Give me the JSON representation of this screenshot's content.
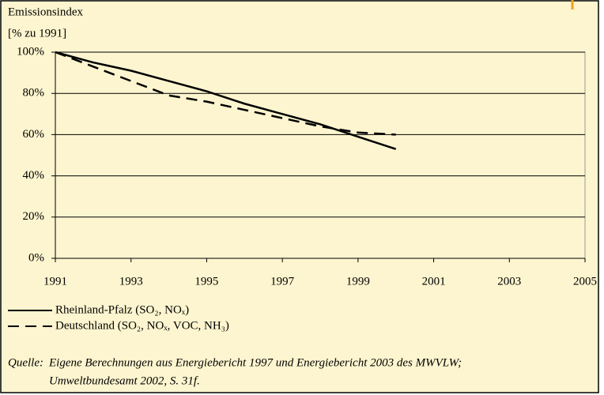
{
  "chart_data": {
    "type": "line",
    "title": "Emissionsindex",
    "y_label": "[% zu 1991]",
    "x": [
      1991,
      1992,
      1993,
      1994,
      1995,
      1996,
      1997,
      1998,
      1999,
      2000
    ],
    "series": [
      {
        "name": "Rheinland-Pfalz (SO₂, NOₓ)",
        "color": "#000000",
        "line_style": "solid",
        "values": [
          100,
          95,
          91,
          86,
          81,
          75,
          70,
          65,
          59,
          53
        ]
      },
      {
        "name": "Deutschland (SO₂, NOₓ, VOC, NH₃)",
        "color": "#000000",
        "line_style": "dashed",
        "values": [
          100,
          93,
          86,
          79,
          76,
          72,
          68,
          64,
          61,
          60
        ]
      }
    ],
    "xlim": [
      1991,
      2005
    ],
    "xticks": [
      1991,
      1993,
      1995,
      1997,
      1999,
      2001,
      2003,
      2005
    ],
    "ylim": [
      0,
      100
    ],
    "yticks": [
      {
        "value": 0,
        "label": "0%"
      },
      {
        "value": 20,
        "label": "20%"
      },
      {
        "value": 40,
        "label": "40%"
      },
      {
        "value": 60,
        "label": "60%"
      },
      {
        "value": 80,
        "label": "80%"
      },
      {
        "value": 100,
        "label": "100%"
      }
    ],
    "grid": true,
    "source_label": "Quelle:",
    "source_lines": [
      "Eigene Berechnungen aus Energiebericht 1997 und Energiebericht 2003 des MWVLW;",
      "Umweltbundesamt 2002, S. 31f."
    ]
  }
}
